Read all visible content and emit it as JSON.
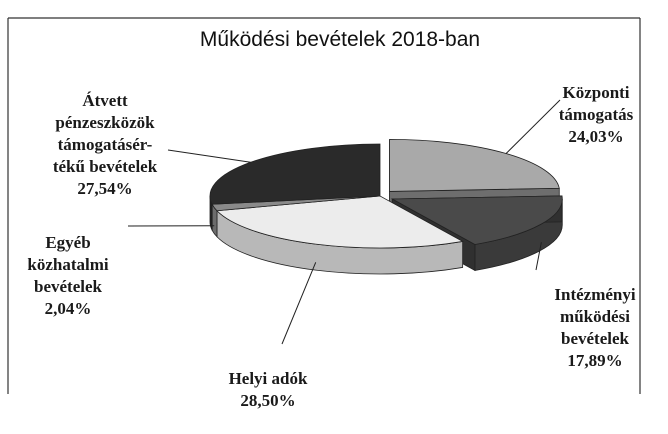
{
  "chart_data": {
    "type": "pie",
    "title": "Működési bevételek 2018-ban",
    "slices": [
      {
        "label": "Központi\ntámogatás",
        "value": 24.03,
        "value_label": "24,03%",
        "color": "#a9a9a9",
        "exploded": true
      },
      {
        "label": "Intézményi\nműködési\nbevételek",
        "value": 17.89,
        "value_label": "17,89%",
        "color": "#4a4a4a",
        "exploded": true
      },
      {
        "label": "Helyi adók",
        "value": 28.5,
        "value_label": "28,50%",
        "color": "#ececec",
        "exploded": false
      },
      {
        "label": "Egyéb\nközhatalmi\nbevételek",
        "value": 2.04,
        "value_label": "2,04%",
        "color": "#8a8a8a",
        "exploded": false
      },
      {
        "label": "Átvett\npénzeszközök\ntámogatásér-\ntékű bevételek",
        "value": 27.54,
        "value_label": "27,54%",
        "color": "#2a2a2a",
        "exploded": false
      }
    ]
  }
}
